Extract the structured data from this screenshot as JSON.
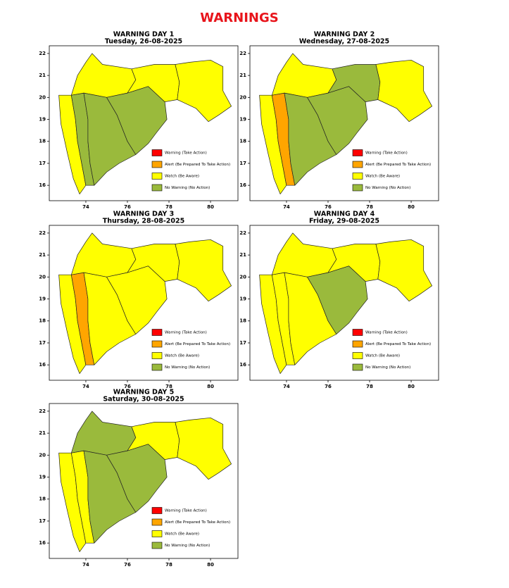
{
  "title": "WARNINGS",
  "axes": {
    "xlim": [
      72.24,
      81.32
    ],
    "ylim": [
      15.3,
      22.35
    ],
    "xticks": [
      74,
      76,
      78,
      80
    ],
    "yticks": [
      16,
      17,
      18,
      19,
      20,
      21,
      22
    ]
  },
  "legend": [
    {
      "label": "Warning (Take Action)",
      "color": "#ff0000"
    },
    {
      "label": "Alert (Be Prepared To Take Action)",
      "color": "#ffa500"
    },
    {
      "label": "Watch (Be Aware)",
      "color": "#ffff00"
    },
    {
      "label": "No Warning (No Action)",
      "color": "#9aba3c"
    }
  ],
  "panels": [
    {
      "title": "WARNING DAY 1",
      "subtitle": "Tuesday, 26-08-2025",
      "zone_colors": [
        "#ffff00",
        "#9aba3c",
        "#ffff00",
        "#9aba3c",
        "#9aba3c",
        "#ffff00",
        "#ffff00"
      ]
    },
    {
      "title": "WARNING DAY 2",
      "subtitle": "Wednesday, 27-08-2025",
      "zone_colors": [
        "#ffff00",
        "#ffa500",
        "#ffff00",
        "#9aba3c",
        "#9aba3c",
        "#9aba3c",
        "#ffff00"
      ]
    },
    {
      "title": "WARNING DAY 3",
      "subtitle": "Thursday, 28-08-2025",
      "zone_colors": [
        "#ffff00",
        "#ffa500",
        "#ffff00",
        "#ffff00",
        "#ffff00",
        "#ffff00",
        "#ffff00"
      ]
    },
    {
      "title": "WARNING DAY 4",
      "subtitle": "Friday, 29-08-2025",
      "zone_colors": [
        "#ffff00",
        "#ffff00",
        "#ffff00",
        "#ffff00",
        "#9aba3c",
        "#ffff00",
        "#ffff00"
      ]
    },
    {
      "title": "WARNING DAY 5",
      "subtitle": "Saturday, 30-08-2025",
      "zone_colors": [
        "#ffff00",
        "#ffff00",
        "#9aba3c",
        "#9aba3c",
        "#9aba3c",
        "#ffff00",
        "#ffff00"
      ]
    }
  ]
}
